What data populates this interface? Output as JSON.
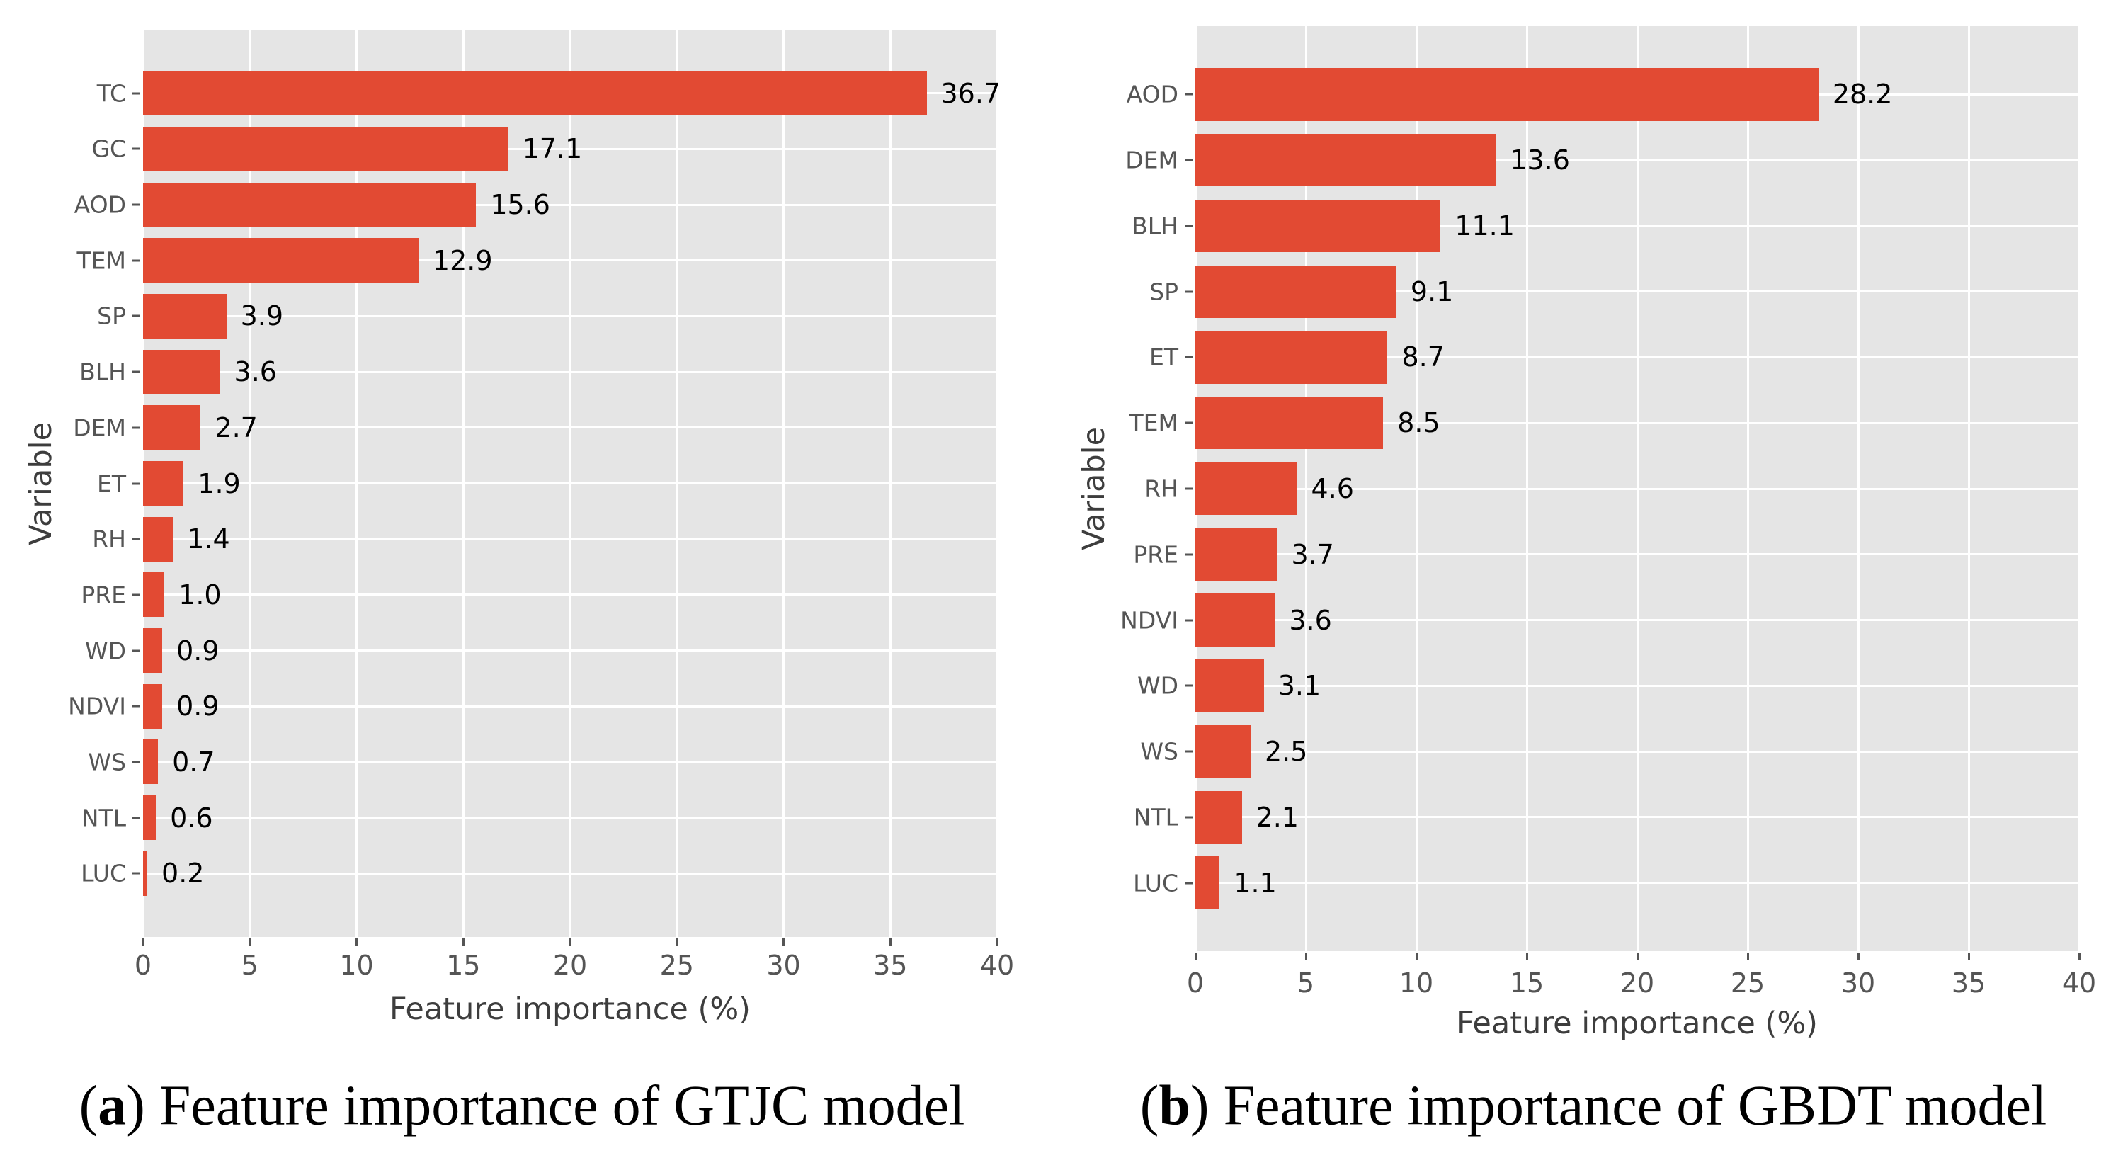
{
  "style": {
    "background": "#ffffff",
    "panel_bg": "#e5e5e5",
    "bar_color": "#e24a33",
    "grid_color": "#ffffff",
    "tick_color": "#555555",
    "tick_text_color": "#555555",
    "value_text_color": "#000000",
    "axis_label_color": "#3d3d3d",
    "caption_color": "#000000"
  },
  "chart_data": [
    {
      "id": "a",
      "type": "bar",
      "orientation": "horizontal",
      "caption": {
        "open_paren": "(",
        "marker": "a",
        "rest": ") Feature importance of GTJC model"
      },
      "xlabel": "Feature importance (%)",
      "ylabel": "Variable",
      "xlim": [
        0,
        40
      ],
      "xticks": [
        0,
        5,
        10,
        15,
        20,
        25,
        30,
        35,
        40
      ],
      "grid": true,
      "legend": "none",
      "bar_width_frac": 0.8,
      "categories": [
        "TC",
        "GC",
        "AOD",
        "TEM",
        "SP",
        "BLH",
        "DEM",
        "ET",
        "RH",
        "PRE",
        "WD",
        "NDVI",
        "WS",
        "NTL",
        "LUC"
      ],
      "values": [
        36.7,
        17.1,
        15.6,
        12.9,
        3.9,
        3.6,
        2.7,
        1.9,
        1.4,
        1.0,
        0.9,
        0.9,
        0.7,
        0.6,
        0.2
      ]
    },
    {
      "id": "b",
      "type": "bar",
      "orientation": "horizontal",
      "caption": {
        "open_paren": "(",
        "marker": "b",
        "rest": ") Feature importance of GBDT model"
      },
      "xlabel": "Feature importance (%)",
      "ylabel": "Variable",
      "xlim": [
        0,
        40
      ],
      "xticks": [
        0,
        5,
        10,
        15,
        20,
        25,
        30,
        35,
        40
      ],
      "grid": true,
      "legend": "none",
      "bar_width_frac": 0.8,
      "categories": [
        "AOD",
        "DEM",
        "BLH",
        "SP",
        "ET",
        "TEM",
        "RH",
        "PRE",
        "NDVI",
        "WD",
        "WS",
        "NTL",
        "LUC"
      ],
      "values": [
        28.2,
        13.6,
        11.1,
        9.1,
        8.7,
        8.5,
        4.6,
        3.7,
        3.6,
        3.1,
        2.5,
        2.1,
        1.1
      ]
    }
  ]
}
